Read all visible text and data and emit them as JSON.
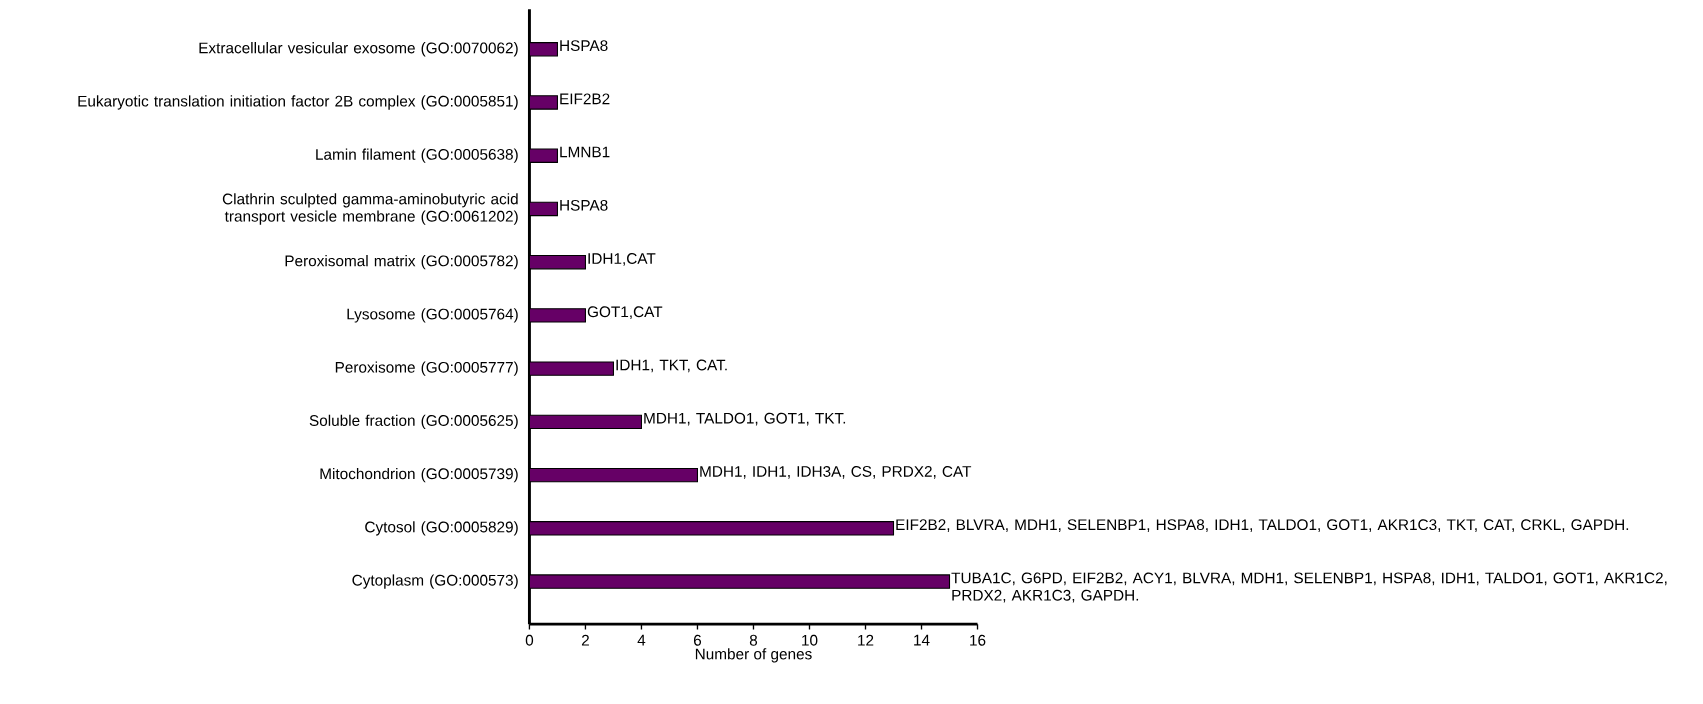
{
  "chart_data": {
    "type": "bar",
    "orientation": "horizontal",
    "xlabel": "Number of genes",
    "categories": [
      "Extracellular vesicular exosome (GO:0070062)",
      "Eukaryotic translation initiation factor 2B complex (GO:0005851)",
      "Lamin filament (GO:0005638)",
      "Clathrin sculpted gamma-aminobutyric acid transport vesicle membrane (GO:0061202)",
      "Peroxisomal matrix (GO:0005782)",
      "Lysosome (GO:0005764)",
      "Peroxisome (GO:0005777)",
      "Soluble fraction (GO:0005625)",
      "Mitochondrion (GO:0005739)",
      "Cytosol (GO:0005829)",
      "Cytoplasm (GO:000573)"
    ],
    "values": [
      1,
      1,
      1,
      1,
      2,
      2,
      3,
      4,
      6,
      13,
      15
    ],
    "value_labels": [
      "HSPA8",
      "EIF2B2",
      "LMNB1",
      "HSPA8",
      "IDH1,CAT",
      "GOT1,CAT",
      "IDH1, TKT, CAT.",
      "MDH1, TALDO1, GOT1, TKT.",
      "MDH1, IDH1, IDH3A, CS, PRDX2, CAT",
      "EIF2B2, BLVRA, MDH1, SELENBP1, HSPA8, IDH1, TALDO1, GOT1, AKR1C3, TKT, CAT, CRKL, GAPDH.",
      "TUBA1C, G6PD, EIF2B2, ACY1, BLVRA, MDH1, SELENBP1, HSPA8, IDH1, TALDO1, GOT1, AKR1C2, PRDX2, AKR1C3, GAPDH."
    ],
    "color": "#660066",
    "xlim": [
      0,
      16
    ],
    "xticks": [
      0,
      2,
      4,
      6,
      8,
      10,
      12,
      14,
      16
    ],
    "grid": false
  }
}
